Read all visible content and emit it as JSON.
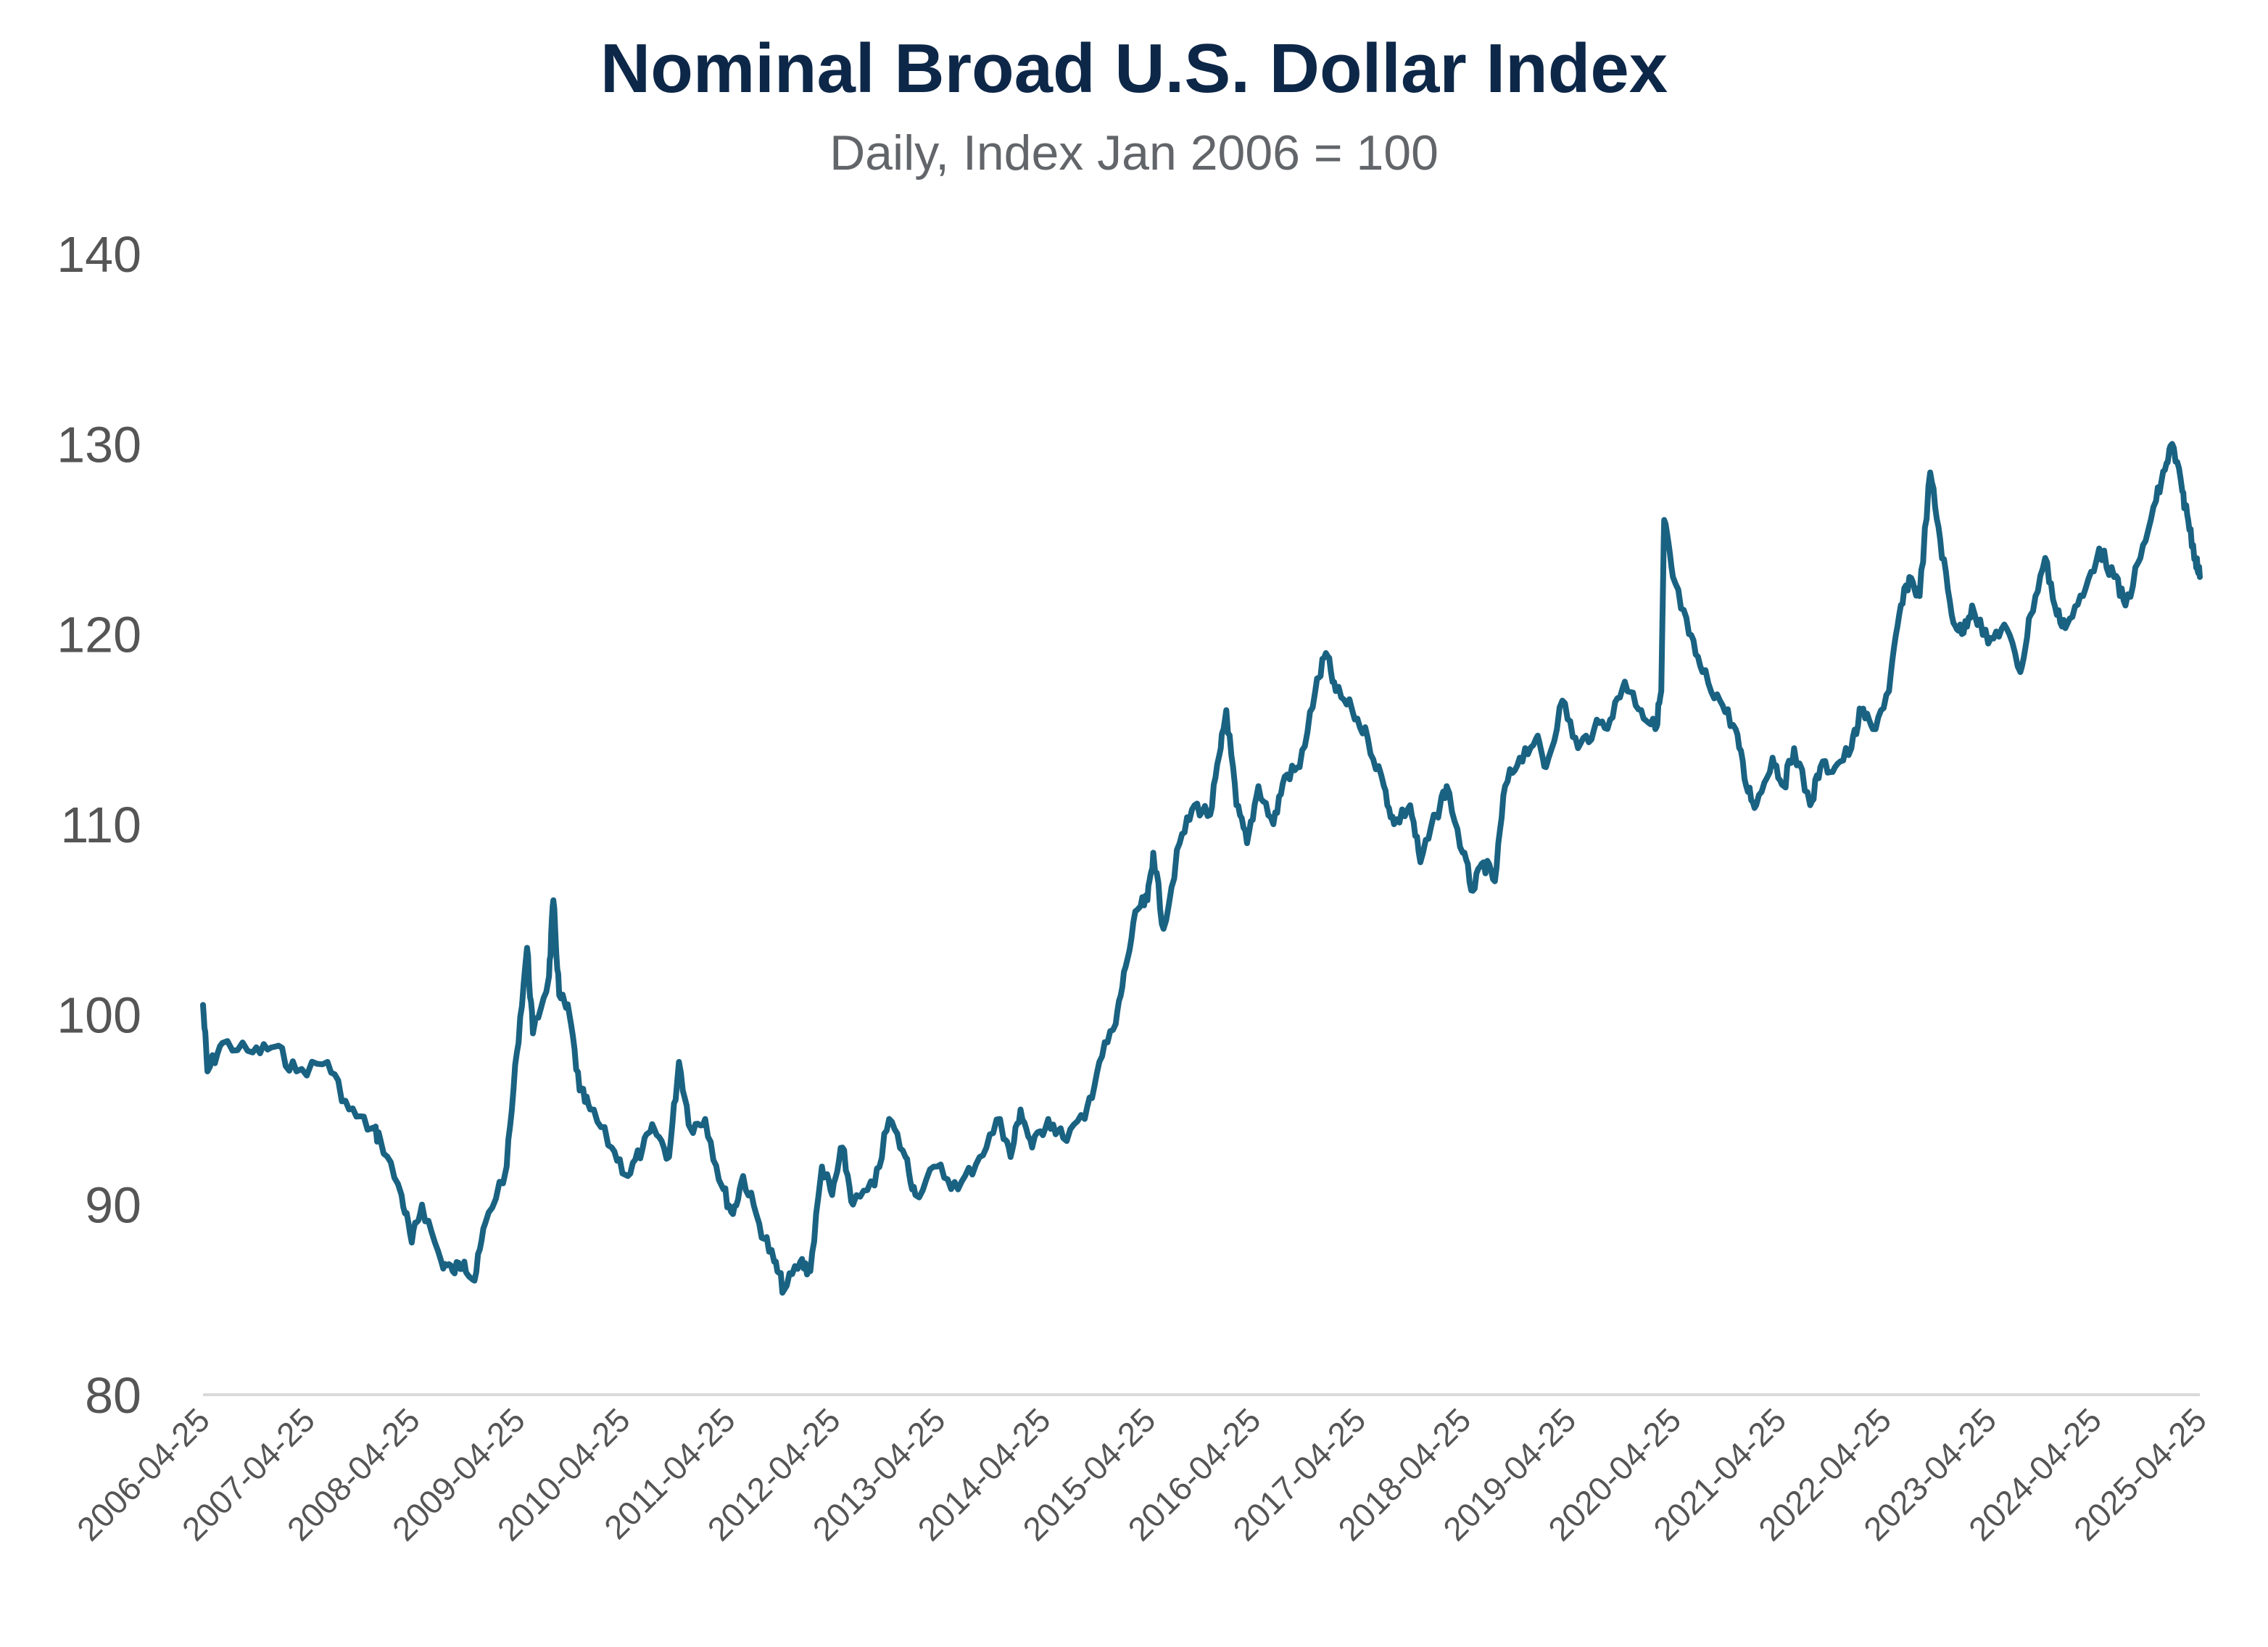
{
  "chart_data": {
    "type": "line",
    "title": "Nominal Broad U.S. Dollar Index",
    "subtitle": "Daily, Index Jan 2006 = 100",
    "xlabel": "",
    "ylabel": "",
    "ylim": [
      80,
      140
    ],
    "yticks": [
      "80",
      "90",
      "100",
      "110",
      "120",
      "130",
      "140"
    ],
    "xlim": [
      "2006-04-25",
      "2025-04-25"
    ],
    "xticks": [
      "2006-04-25",
      "2007-04-25",
      "2008-04-25",
      "2009-04-25",
      "2010-04-25",
      "2011-04-25",
      "2012-04-25",
      "2013-04-25",
      "2014-04-25",
      "2015-04-25",
      "2016-04-25",
      "2017-04-25",
      "2018-04-25",
      "2019-04-25",
      "2020-04-25",
      "2021-04-25",
      "2022-04-25",
      "2023-04-25",
      "2024-04-25",
      "2025-04-25"
    ],
    "grid": false,
    "line_color": "#1a6282",
    "series": [
      {
        "points": [
          [
            "2006-04-25",
            100.5
          ],
          [
            "2006-05-10",
            97
          ],
          [
            "2006-07-01",
            98.5
          ],
          [
            "2006-10-15",
            98
          ],
          [
            "2007-01-01",
            98.3
          ],
          [
            "2007-03-15",
            97
          ],
          [
            "2007-07-01",
            97.5
          ],
          [
            "2007-09-15",
            95
          ],
          [
            "2007-12-01",
            94
          ],
          [
            "2008-01-01",
            93.5
          ],
          [
            "2008-03-15",
            90.5
          ],
          [
            "2008-04-20",
            88
          ],
          [
            "2008-05-25",
            90
          ],
          [
            "2008-08-01",
            87
          ],
          [
            "2008-09-10",
            86.5
          ],
          [
            "2008-10-20",
            87
          ],
          [
            "2008-11-25",
            86
          ],
          [
            "2009-01-01",
            89
          ],
          [
            "2009-03-15",
            92
          ],
          [
            "2009-04-20",
            98
          ],
          [
            "2009-05-25",
            103.5
          ],
          [
            "2009-06-15",
            99
          ],
          [
            "2009-08-10",
            102
          ],
          [
            "2009-08-25",
            106
          ],
          [
            "2009-09-15",
            101
          ],
          [
            "2009-10-20",
            100
          ],
          [
            "2009-11-25",
            96
          ],
          [
            "2010-01-01",
            95
          ],
          [
            "2010-03-15",
            93
          ],
          [
            "2010-05-10",
            91.5
          ],
          [
            "2010-07-01",
            93
          ],
          [
            "2010-08-10",
            94
          ],
          [
            "2010-10-01",
            92.5
          ],
          [
            "2010-11-05",
            97.5
          ],
          [
            "2010-12-15",
            94
          ],
          [
            "2011-02-05",
            94.5
          ],
          [
            "2011-04-01",
            91
          ],
          [
            "2011-05-10",
            89.5
          ],
          [
            "2011-06-15",
            91.5
          ],
          [
            "2011-08-10",
            89
          ],
          [
            "2011-10-01",
            87
          ],
          [
            "2011-11-05",
            85.5
          ],
          [
            "2012-01-01",
            87
          ],
          [
            "2012-02-05",
            86.5
          ],
          [
            "2012-03-15",
            92
          ],
          [
            "2012-04-20",
            90.5
          ],
          [
            "2012-05-25",
            93
          ],
          [
            "2012-07-01",
            90
          ],
          [
            "2012-09-15",
            91
          ],
          [
            "2012-11-05",
            94.5
          ],
          [
            "2013-01-01",
            92.5
          ],
          [
            "2013-02-05",
            90.5
          ],
          [
            "2013-04-20",
            92
          ],
          [
            "2013-07-01",
            90.8
          ],
          [
            "2013-09-15",
            92.5
          ],
          [
            "2013-11-25",
            94.5
          ],
          [
            "2014-01-01",
            92.5
          ],
          [
            "2014-02-05",
            95
          ],
          [
            "2014-03-15",
            93
          ],
          [
            "2014-05-10",
            94.5
          ],
          [
            "2014-07-01",
            93.5
          ],
          [
            "2014-09-15",
            94.5
          ],
          [
            "2014-11-05",
            97.5
          ],
          [
            "2015-01-01",
            99.5
          ],
          [
            "2015-02-05",
            102.5
          ],
          [
            "2015-03-15",
            105.5
          ],
          [
            "2015-04-20",
            106
          ],
          [
            "2015-05-10",
            108.5
          ],
          [
            "2015-06-15",
            104.5
          ],
          [
            "2015-08-10",
            109
          ],
          [
            "2015-10-01",
            111
          ],
          [
            "2015-11-25",
            110.5
          ],
          [
            "2016-01-01",
            114
          ],
          [
            "2016-01-20",
            116
          ],
          [
            "2016-02-25",
            111
          ],
          [
            "2016-04-01",
            109
          ],
          [
            "2016-05-10",
            112
          ],
          [
            "2016-07-01",
            110
          ],
          [
            "2016-08-10",
            112.5
          ],
          [
            "2016-10-01",
            113
          ],
          [
            "2016-11-25",
            117
          ],
          [
            "2017-01-01",
            119
          ],
          [
            "2017-02-05",
            117
          ],
          [
            "2017-04-01",
            116
          ],
          [
            "2017-05-25",
            114.5
          ],
          [
            "2017-07-20",
            112
          ],
          [
            "2017-08-25",
            110
          ],
          [
            "2017-10-20",
            111
          ],
          [
            "2017-11-25",
            108
          ],
          [
            "2018-01-20",
            110.5
          ],
          [
            "2018-02-25",
            112
          ],
          [
            "2018-04-20",
            108.5
          ],
          [
            "2018-05-25",
            106.5
          ],
          [
            "2018-07-01",
            108
          ],
          [
            "2018-08-10",
            107
          ],
          [
            "2018-09-15",
            112
          ],
          [
            "2018-11-05",
            113.5
          ],
          [
            "2019-01-01",
            114.5
          ],
          [
            "2019-02-05",
            113
          ],
          [
            "2019-04-01",
            116.5
          ],
          [
            "2019-05-25",
            114
          ],
          [
            "2019-07-20",
            115
          ],
          [
            "2019-09-15",
            115.5
          ],
          [
            "2019-11-05",
            117.5
          ],
          [
            "2020-01-01",
            116
          ],
          [
            "2020-02-20",
            115
          ],
          [
            "2020-03-10",
            117
          ],
          [
            "2020-03-20",
            126
          ],
          [
            "2020-04-20",
            123
          ],
          [
            "2020-06-15",
            120
          ],
          [
            "2020-08-01",
            118
          ],
          [
            "2020-10-01",
            116.5
          ],
          [
            "2020-11-25",
            115
          ],
          [
            "2021-01-01",
            112
          ],
          [
            "2021-02-05",
            111
          ],
          [
            "2021-04-01",
            113.5
          ],
          [
            "2021-05-10",
            112
          ],
          [
            "2021-06-15",
            114
          ],
          [
            "2021-08-10",
            111
          ],
          [
            "2021-09-15",
            113
          ],
          [
            "2021-11-05",
            113
          ],
          [
            "2022-01-01",
            114
          ],
          [
            "2022-02-05",
            116
          ],
          [
            "2022-03-15",
            115
          ],
          [
            "2022-05-10",
            117
          ],
          [
            "2022-06-15",
            121
          ],
          [
            "2022-07-20",
            123
          ],
          [
            "2022-08-25",
            122
          ],
          [
            "2022-10-01",
            128.5
          ],
          [
            "2022-11-05",
            125
          ],
          [
            "2022-12-15",
            121
          ],
          [
            "2023-01-20",
            120
          ],
          [
            "2023-02-25",
            121.5
          ],
          [
            "2023-04-20",
            119.5
          ],
          [
            "2023-06-15",
            120.5
          ],
          [
            "2023-08-10",
            118
          ],
          [
            "2023-09-15",
            121
          ],
          [
            "2023-11-05",
            124
          ],
          [
            "2023-12-15",
            121
          ],
          [
            "2024-01-20",
            120.5
          ],
          [
            "2024-03-15",
            122
          ],
          [
            "2024-05-10",
            124.5
          ],
          [
            "2024-07-01",
            123
          ],
          [
            "2024-08-10",
            121.5
          ],
          [
            "2024-10-01",
            124
          ],
          [
            "2024-11-25",
            127
          ],
          [
            "2025-01-01",
            129
          ],
          [
            "2025-01-20",
            130
          ],
          [
            "2025-02-25",
            127.5
          ],
          [
            "2025-03-15",
            126
          ],
          [
            "2025-04-10",
            124
          ],
          [
            "2025-04-25",
            123
          ]
        ]
      }
    ]
  }
}
